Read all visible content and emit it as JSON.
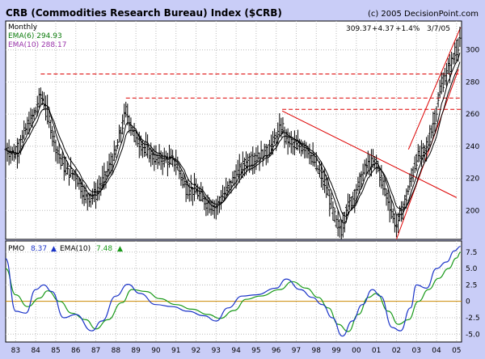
{
  "chart_data": [
    {
      "type": "ohlc",
      "title": "CRB (Commodities Research Bureau) Index ($CRB)",
      "copyright": "(c) 2005 DecisionPoint.com",
      "period": "Monthly",
      "quote": {
        "last": "309.37",
        "change": "+4.37",
        "change_pct": "+1.4%",
        "date": "3/7/05"
      },
      "ylim": [
        182,
        318
      ],
      "y_ticks": [
        200,
        220,
        240,
        260,
        280,
        300
      ],
      "x_ticks": [
        "83",
        "84",
        "85",
        "86",
        "87",
        "88",
        "89",
        "90",
        "91",
        "92",
        "93",
        "94",
        "95",
        "96",
        "97",
        "98",
        "99",
        "00",
        "01",
        "02",
        "03",
        "04",
        "05"
      ],
      "x_range": [
        1982.5,
        2005.25
      ],
      "price_approx": [
        [
          1982.5,
          238
        ],
        [
          1983.0,
          235
        ],
        [
          1983.5,
          250
        ],
        [
          1984.0,
          262
        ],
        [
          1984.25,
          272
        ],
        [
          1984.5,
          265
        ],
        [
          1985.0,
          240
        ],
        [
          1985.5,
          225
        ],
        [
          1986.0,
          222
        ],
        [
          1986.5,
          208
        ],
        [
          1987.0,
          210
        ],
        [
          1987.5,
          222
        ],
        [
          1988.0,
          236
        ],
        [
          1988.5,
          262
        ],
        [
          1989.0,
          245
        ],
        [
          1989.5,
          238
        ],
        [
          1990.0,
          232
        ],
        [
          1990.5,
          232
        ],
        [
          1991.0,
          230
        ],
        [
          1991.5,
          214
        ],
        [
          1992.0,
          212
        ],
        [
          1992.5,
          205
        ],
        [
          1993.0,
          202
        ],
        [
          1993.5,
          212
        ],
        [
          1994.0,
          222
        ],
        [
          1994.5,
          230
        ],
        [
          1995.0,
          233
        ],
        [
          1995.5,
          236
        ],
        [
          1996.0,
          245
        ],
        [
          1996.3,
          253
        ],
        [
          1996.5,
          245
        ],
        [
          1997.0,
          240
        ],
        [
          1997.5,
          240
        ],
        [
          1998.0,
          228
        ],
        [
          1998.5,
          215
        ],
        [
          1999.0,
          192
        ],
        [
          1999.25,
          188
        ],
        [
          1999.5,
          200
        ],
        [
          2000.0,
          212
        ],
        [
          2000.5,
          228
        ],
        [
          2001.0,
          230
        ],
        [
          2001.5,
          210
        ],
        [
          2002.0,
          190
        ],
        [
          2002.5,
          208
        ],
        [
          2003.0,
          232
        ],
        [
          2003.5,
          238
        ],
        [
          2004.0,
          262
        ],
        [
          2004.25,
          278
        ],
        [
          2004.5,
          285
        ],
        [
          2004.75,
          292
        ],
        [
          2005.0,
          300
        ],
        [
          2005.2,
          309
        ]
      ],
      "series": [
        {
          "name": "EMA(6)",
          "label": "EMA(6) 294.93",
          "color": "#0a7a0a"
        },
        {
          "name": "EMA(10)",
          "label": "EMA(10) 288.17",
          "color": "#9933aa"
        }
      ],
      "annotations": {
        "resistance_dashed": [
          285,
          270,
          263
        ],
        "downtrend_line": [
          [
            1996.3,
            262
          ],
          [
            2005.0,
            208
          ]
        ],
        "up_channel_lower": [
          [
            2002.0,
            182
          ],
          [
            2005.1,
            288
          ]
        ],
        "up_channel_upper": [
          [
            2002.6,
            238
          ],
          [
            2005.2,
            314
          ]
        ]
      },
      "grid": "dotted",
      "colors": {
        "price": "#000000",
        "trendline": "#dd0000",
        "background": "#ffffff",
        "frame": "#c9cdf7"
      }
    },
    {
      "type": "line",
      "ylim": [
        -6.2,
        9.2
      ],
      "y_ticks": [
        -5.0,
        -2.5,
        0,
        2.5,
        5.0,
        7.5
      ],
      "y_tick_labels": [
        "-5.0",
        "-2.5",
        "0",
        "2.5",
        "5.0",
        "7.5"
      ],
      "x_ticks": [
        "83",
        "84",
        "85",
        "86",
        "87",
        "88",
        "89",
        "90",
        "91",
        "92",
        "93",
        "94",
        "95",
        "96",
        "97",
        "98",
        "99",
        "00",
        "01",
        "02",
        "03",
        "04",
        "05"
      ],
      "legend_labels": [
        {
          "name": "PMO",
          "value": "8.37",
          "color": "#1a33c8"
        },
        {
          "name": "EMA(10)",
          "value": "7.48",
          "color": "#1a9a1a"
        }
      ],
      "series": [
        {
          "name": "PMO",
          "color": "#1a33c8",
          "points": [
            [
              1982.5,
              6.5
            ],
            [
              1983.0,
              -1.5
            ],
            [
              1983.5,
              -1.8
            ],
            [
              1984.0,
              1.8
            ],
            [
              1984.4,
              2.5
            ],
            [
              1984.8,
              1.5
            ],
            [
              1985.4,
              -2.5
            ],
            [
              1986.0,
              -2.0
            ],
            [
              1986.8,
              -4.5
            ],
            [
              1987.3,
              -3.0
            ],
            [
              1988.0,
              0.8
            ],
            [
              1988.6,
              2.6
            ],
            [
              1989.2,
              1.2
            ],
            [
              1990.0,
              -0.5
            ],
            [
              1990.8,
              -0.8
            ],
            [
              1991.6,
              -1.5
            ],
            [
              1992.4,
              -2.2
            ],
            [
              1993.0,
              -3.0
            ],
            [
              1993.6,
              -1.0
            ],
            [
              1994.3,
              0.8
            ],
            [
              1995.0,
              1.0
            ],
            [
              1996.0,
              2.0
            ],
            [
              1996.5,
              3.4
            ],
            [
              1997.2,
              1.8
            ],
            [
              1997.8,
              0.6
            ],
            [
              1998.3,
              -0.5
            ],
            [
              1998.8,
              -2.5
            ],
            [
              1999.3,
              -5.3
            ],
            [
              1999.8,
              -3.0
            ],
            [
              2000.3,
              -0.5
            ],
            [
              2000.8,
              1.8
            ],
            [
              2001.2,
              0.8
            ],
            [
              2001.8,
              -4.0
            ],
            [
              2002.2,
              -4.5
            ],
            [
              2002.7,
              -1.0
            ],
            [
              2003.0,
              2.5
            ],
            [
              2003.5,
              2.0
            ],
            [
              2004.0,
              5.0
            ],
            [
              2004.5,
              6.0
            ],
            [
              2004.9,
              7.7
            ],
            [
              2005.2,
              8.37
            ]
          ]
        },
        {
          "name": "EMA(10)",
          "color": "#1a9a1a",
          "points": [
            [
              1982.5,
              5.0
            ],
            [
              1983.0,
              1.0
            ],
            [
              1983.6,
              -0.8
            ],
            [
              1984.2,
              0.5
            ],
            [
              1984.6,
              1.6
            ],
            [
              1985.2,
              0.0
            ],
            [
              1985.8,
              -1.8
            ],
            [
              1986.5,
              -2.8
            ],
            [
              1987.0,
              -4.2
            ],
            [
              1987.6,
              -2.8
            ],
            [
              1988.3,
              -0.2
            ],
            [
              1988.8,
              1.8
            ],
            [
              1989.5,
              1.5
            ],
            [
              1990.2,
              0.4
            ],
            [
              1991.0,
              -0.5
            ],
            [
              1991.8,
              -1.2
            ],
            [
              1992.6,
              -2.0
            ],
            [
              1993.2,
              -2.6
            ],
            [
              1993.9,
              -1.4
            ],
            [
              1994.5,
              0.3
            ],
            [
              1995.2,
              0.8
            ],
            [
              1996.2,
              1.8
            ],
            [
              1996.8,
              3.0
            ],
            [
              1997.5,
              2.0
            ],
            [
              1998.1,
              0.6
            ],
            [
              1998.6,
              -1.0
            ],
            [
              1999.1,
              -3.5
            ],
            [
              1999.6,
              -4.6
            ],
            [
              2000.1,
              -2.0
            ],
            [
              2000.6,
              0.6
            ],
            [
              2001.0,
              1.2
            ],
            [
              2001.6,
              -1.5
            ],
            [
              2002.1,
              -3.5
            ],
            [
              2002.6,
              -2.8
            ],
            [
              2003.1,
              0.0
            ],
            [
              2003.6,
              1.8
            ],
            [
              2004.1,
              3.5
            ],
            [
              2004.6,
              5.0
            ],
            [
              2005.0,
              6.6
            ],
            [
              2005.2,
              7.48
            ]
          ]
        }
      ],
      "zero_line_color": "#cc8800",
      "grid": "dotted"
    }
  ]
}
